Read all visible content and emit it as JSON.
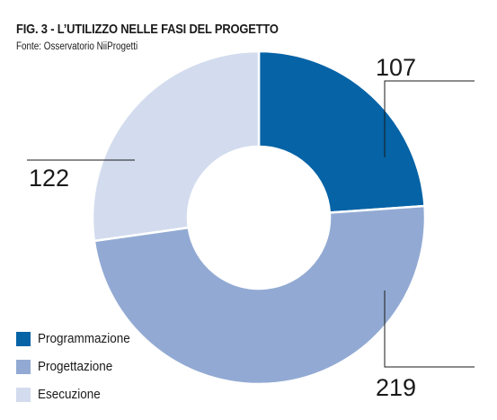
{
  "title": "FIG. 3 - L’UTILIZZO NELLE FASI DEL PROGETTO",
  "source": "Fonte: Osservatorio NiiProgetti",
  "chart_data": {
    "type": "pie",
    "donut": true,
    "categories": [
      "Programmazione",
      "Progettazione",
      "Esecuzione"
    ],
    "values": [
      107,
      219,
      122
    ],
    "colors": [
      "#0563a6",
      "#92aad3",
      "#d3dcee"
    ],
    "legend_position": "bottom-left"
  }
}
